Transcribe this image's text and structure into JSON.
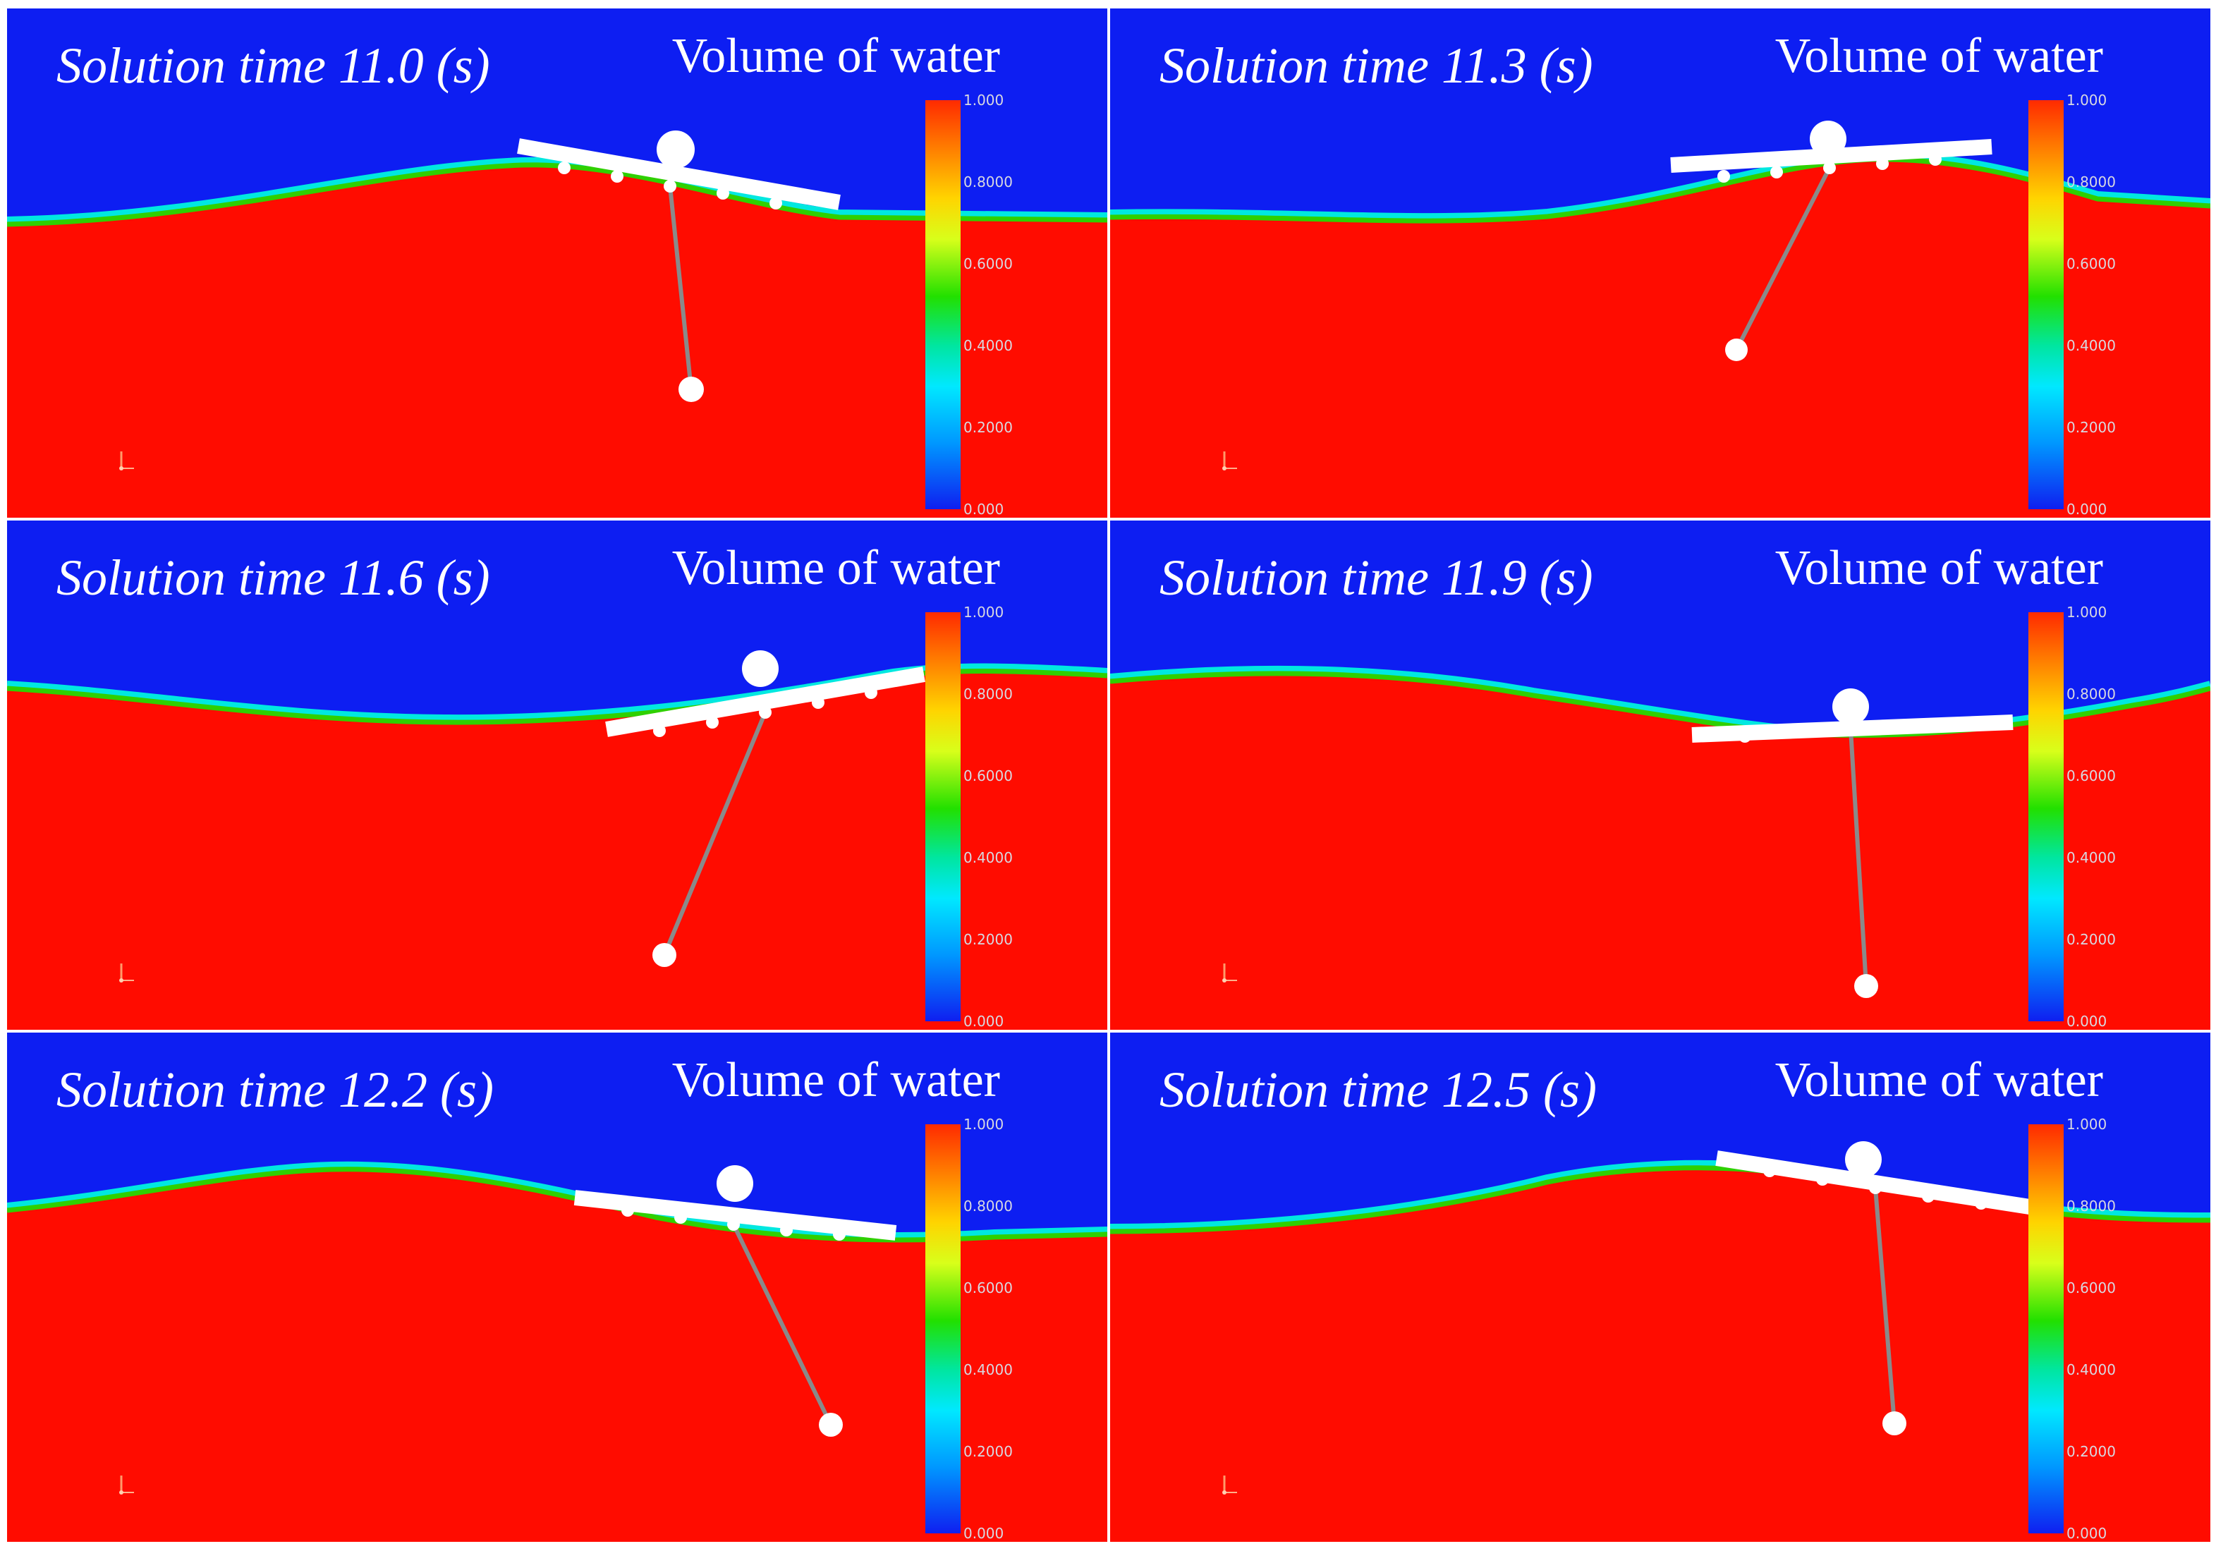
{
  "colors": {
    "air": "#0d1ef2",
    "water": "#ff0c00",
    "interface_green": "#2fd000",
    "interface_cyan": "#00e8e0",
    "structure": "#ffffff",
    "mooring_line": "#8a8a8a"
  },
  "colorbar": {
    "ticks": [
      "1.000",
      "0.8000",
      "0.6000",
      "0.4000",
      "0.2000",
      "0.000"
    ]
  },
  "panels": [
    {
      "title": "Solution time 11.0 (s)",
      "legend": "Volume of water",
      "icon": "axis-triad-icon"
    },
    {
      "title": "Solution time 11.3 (s)",
      "legend": "Volume of water",
      "icon": "axis-triad-icon"
    },
    {
      "title": "Solution time 11.6 (s)",
      "legend": "Volume of water",
      "icon": "axis-triad-icon"
    },
    {
      "title": "Solution time 11.9 (s)",
      "legend": "Volume of water",
      "icon": "axis-triad-icon"
    },
    {
      "title": "Solution time 12.2 (s)",
      "legend": "Volume of water",
      "icon": "axis-triad-icon"
    },
    {
      "title": "Solution time 12.5 (s)",
      "legend": "Volume of water",
      "icon": "axis-triad-icon"
    }
  ]
}
